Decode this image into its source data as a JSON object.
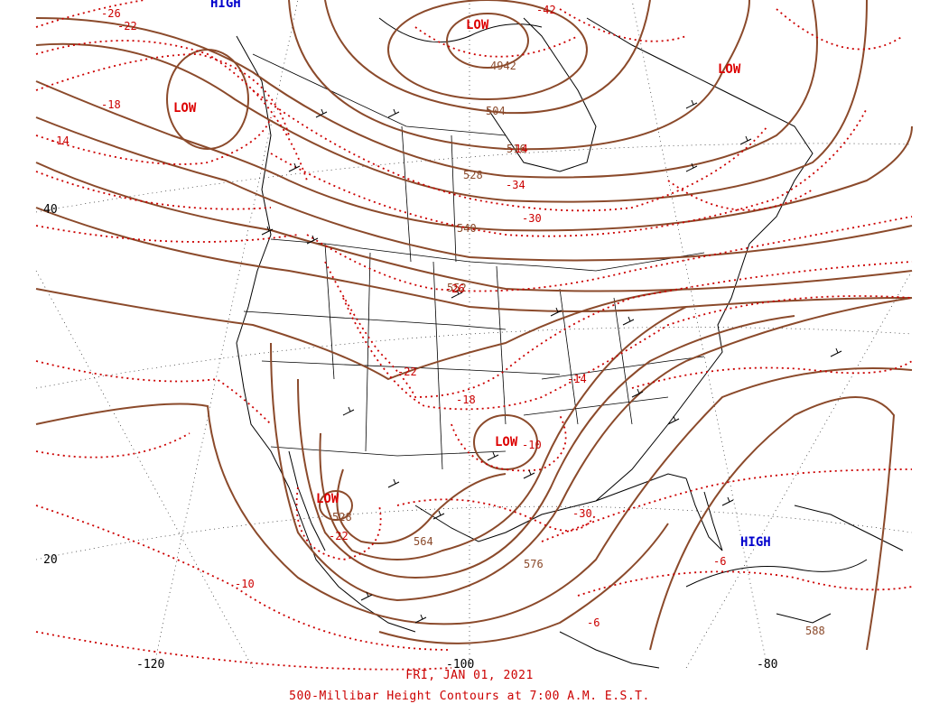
{
  "map": {
    "date": "FRI, JAN 01, 2021",
    "title": "500-Millibar Height Contours at 7:00 A.M. E.S.T.",
    "colors": {
      "height_contour": "#8b4a2b",
      "temperature_isotherm": "#cc0000",
      "high_label": "#0000cc",
      "low_label": "#dd0000",
      "coastline": "#000000",
      "grid": "#000000"
    },
    "pressure_systems": [
      {
        "type": "HIGH",
        "label": "HIGH"
      },
      {
        "type": "LOW",
        "label": "LOW"
      },
      {
        "type": "LOW",
        "label": "LOW"
      },
      {
        "type": "LOW",
        "label": "LOW"
      },
      {
        "type": "LOW",
        "label": "LOW"
      },
      {
        "type": "LOW",
        "label": "LOW"
      },
      {
        "type": "HIGH",
        "label": "HIGH"
      }
    ],
    "height_labels": [
      "4942",
      "504",
      "516",
      "528",
      "540",
      "552",
      "528",
      "564",
      "576",
      "588"
    ],
    "temperature_labels": [
      "-26",
      "-22",
      "-18",
      "-14",
      "-34",
      "-30",
      "-26",
      "-22",
      "-18",
      "-14",
      "-10",
      "-22",
      "-10",
      "-6",
      "-6",
      "-42",
      "-30",
      "-14"
    ],
    "latitude_labels": [
      "40",
      "20"
    ],
    "longitude_labels": [
      "-120",
      "-100",
      "-80"
    ]
  }
}
